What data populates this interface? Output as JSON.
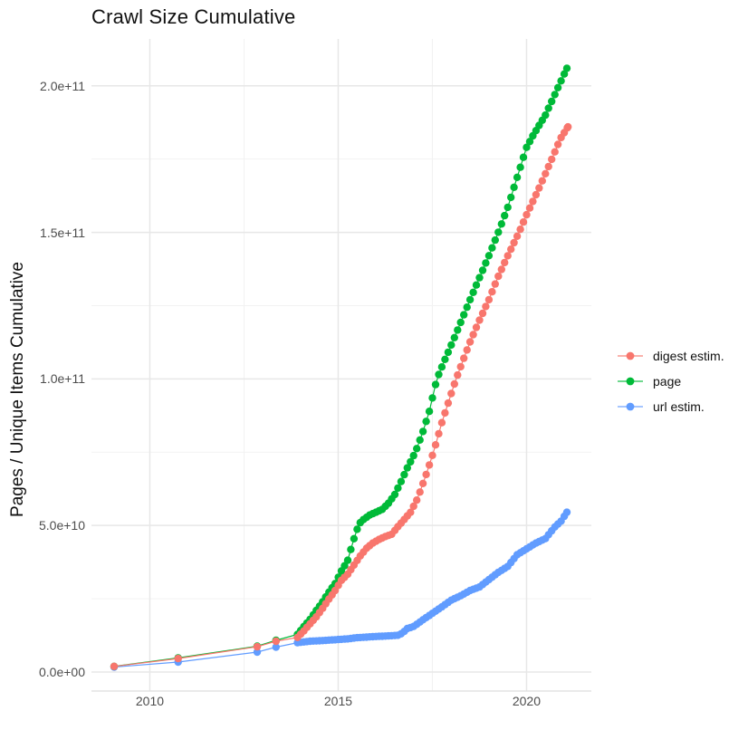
{
  "chart_data": {
    "type": "line",
    "marker": "circle",
    "title": "Crawl Size Cumulative",
    "xlabel": "",
    "ylabel": "Pages / Unique Items Cumulative",
    "grid": true,
    "legend_position": "right",
    "x_axis": {
      "min": 2008.45,
      "max": 2021.72,
      "major_ticks": [
        2010,
        2015,
        2020
      ],
      "minor_ticks": [
        2012.5,
        2017.5
      ],
      "tick_labels": [
        "2010",
        "2015",
        "2020"
      ]
    },
    "y_axis": {
      "min": -6500000000.0,
      "max": 216000000000.0,
      "major_ticks": [
        0,
        50000000000.0,
        100000000000.0,
        150000000000.0,
        200000000000.0
      ],
      "minor_ticks": [
        25000000000.0,
        75000000000.0,
        125000000000.0,
        175000000000.0
      ],
      "tick_labels": [
        "0.0e+00",
        "5.0e+10",
        "1.0e+11",
        "1.5e+11",
        "2.0e+11"
      ]
    },
    "point_interval_years": 0.0833,
    "dense_from_year": 2013.92,
    "series": [
      {
        "name": "digest estim.",
        "color": "#F8766D",
        "points": [
          [
            2009.05,
            1900000000.0
          ],
          [
            2010.75,
            4600000000.0
          ],
          [
            2012.85,
            8600000000.0
          ],
          [
            2013.35,
            10500000000.0
          ],
          [
            2013.92,
            11800000000.0
          ],
          [
            2014.08,
            13900000000.0
          ],
          [
            2014.25,
            16400000000.0
          ],
          [
            2014.42,
            18800000000.0
          ],
          [
            2014.58,
            21600000000.0
          ],
          [
            2014.75,
            24800000000.0
          ],
          [
            2014.92,
            27800000000.0
          ],
          [
            2015.08,
            31200000000.0
          ],
          [
            2015.25,
            33300000000.0
          ],
          [
            2015.42,
            36500000000.0
          ],
          [
            2015.58,
            39500000000.0
          ],
          [
            2015.75,
            42200000000.0
          ],
          [
            2015.92,
            44000000000.0
          ],
          [
            2016.08,
            45200000000.0
          ],
          [
            2016.25,
            46200000000.0
          ],
          [
            2016.42,
            47000000000.0
          ],
          [
            2016.58,
            49500000000.0
          ],
          [
            2016.75,
            52000000000.0
          ],
          [
            2016.92,
            54500000000.0
          ],
          [
            2017.1,
            59000000000.0
          ],
          [
            2017.3,
            66000000000.0
          ],
          [
            2017.53,
            75000000000.0
          ],
          [
            2017.75,
            85000000000.0
          ],
          [
            2017.95,
            93000000000.0
          ],
          [
            2018.13,
            100000000000.0
          ],
          [
            2018.48,
            112000000000.0
          ],
          [
            2018.75,
            120000000000.0
          ],
          [
            2019.0,
            127000000000.0
          ],
          [
            2019.25,
            135000000000.0
          ],
          [
            2019.5,
            142000000000.0
          ],
          [
            2019.8,
            150000000000.0
          ],
          [
            2020.0,
            156000000000.0
          ],
          [
            2020.33,
            165000000000.0
          ],
          [
            2020.67,
            175000000000.0
          ],
          [
            2020.9,
            182000000000.0
          ],
          [
            2021.1,
            186000000000.0
          ]
        ]
      },
      {
        "name": "page",
        "color": "#00BA38",
        "points": [
          [
            2009.05,
            1900000000.0
          ],
          [
            2010.75,
            4800000000.0
          ],
          [
            2012.85,
            8800000000.0
          ],
          [
            2013.35,
            10800000000.0
          ],
          [
            2013.92,
            12800000000.0
          ],
          [
            2014.08,
            15400000000.0
          ],
          [
            2014.25,
            17900000000.0
          ],
          [
            2014.42,
            21000000000.0
          ],
          [
            2014.58,
            23800000000.0
          ],
          [
            2014.75,
            27200000000.0
          ],
          [
            2014.92,
            30200000000.0
          ],
          [
            2015.08,
            34300000000.0
          ],
          [
            2015.25,
            38000000000.0
          ],
          [
            2015.42,
            45500000000.0
          ],
          [
            2015.55,
            50500000000.0
          ],
          [
            2015.67,
            52000000000.0
          ],
          [
            2015.83,
            53500000000.0
          ],
          [
            2016.0,
            54500000000.0
          ],
          [
            2016.17,
            55500000000.0
          ],
          [
            2016.33,
            57500000000.0
          ],
          [
            2016.5,
            60500000000.0
          ],
          [
            2016.67,
            65000000000.0
          ],
          [
            2016.83,
            69500000000.0
          ],
          [
            2017.05,
            75000000000.0
          ],
          [
            2017.25,
            82000000000.0
          ],
          [
            2017.42,
            89000000000.0
          ],
          [
            2017.62,
            100000000000.0
          ],
          [
            2017.83,
            106500000000.0
          ],
          [
            2018.05,
            113000000000.0
          ],
          [
            2018.5,
            127000000000.0
          ],
          [
            2019.0,
            142000000000.0
          ],
          [
            2019.25,
            150000000000.0
          ],
          [
            2019.5,
            158500000000.0
          ],
          [
            2020.0,
            179000000000.0
          ],
          [
            2020.17,
            183000000000.0
          ],
          [
            2020.5,
            190000000000.0
          ],
          [
            2020.75,
            197000000000.0
          ],
          [
            2021.07,
            206000000000.0
          ]
        ]
      },
      {
        "name": "url estim.",
        "color": "#619CFF",
        "points": [
          [
            2009.05,
            1700000000.0
          ],
          [
            2010.75,
            3400000000.0
          ],
          [
            2012.85,
            6800000000.0
          ],
          [
            2013.35,
            8500000000.0
          ],
          [
            2013.92,
            10000000000.0
          ],
          [
            2014.25,
            10500000000.0
          ],
          [
            2014.58,
            10700000000.0
          ],
          [
            2014.92,
            11000000000.0
          ],
          [
            2015.25,
            11300000000.0
          ],
          [
            2015.5,
            11700000000.0
          ],
          [
            2016.0,
            12100000000.0
          ],
          [
            2016.33,
            12300000000.0
          ],
          [
            2016.58,
            12500000000.0
          ],
          [
            2016.7,
            13200000000.0
          ],
          [
            2016.83,
            14800000000.0
          ],
          [
            2017.0,
            15500000000.0
          ],
          [
            2017.25,
            17800000000.0
          ],
          [
            2017.5,
            20000000000.0
          ],
          [
            2017.75,
            22200000000.0
          ],
          [
            2018.0,
            24500000000.0
          ],
          [
            2018.25,
            26000000000.0
          ],
          [
            2018.5,
            27800000000.0
          ],
          [
            2018.75,
            29000000000.0
          ],
          [
            2019.0,
            31500000000.0
          ],
          [
            2019.25,
            34000000000.0
          ],
          [
            2019.5,
            36000000000.0
          ],
          [
            2019.75,
            40000000000.0
          ],
          [
            2020.0,
            42000000000.0
          ],
          [
            2020.25,
            44000000000.0
          ],
          [
            2020.5,
            45500000000.0
          ],
          [
            2020.75,
            49500000000.0
          ],
          [
            2020.92,
            51500000000.0
          ],
          [
            2021.07,
            54500000000.0
          ]
        ]
      }
    ],
    "colors": {
      "grid_major": "#E7E7E7",
      "grid_minor": "#F2F2F2",
      "axis_line": "#DEDEDE",
      "tick_text": "#4d4d4d",
      "title_text": "#111111"
    }
  }
}
